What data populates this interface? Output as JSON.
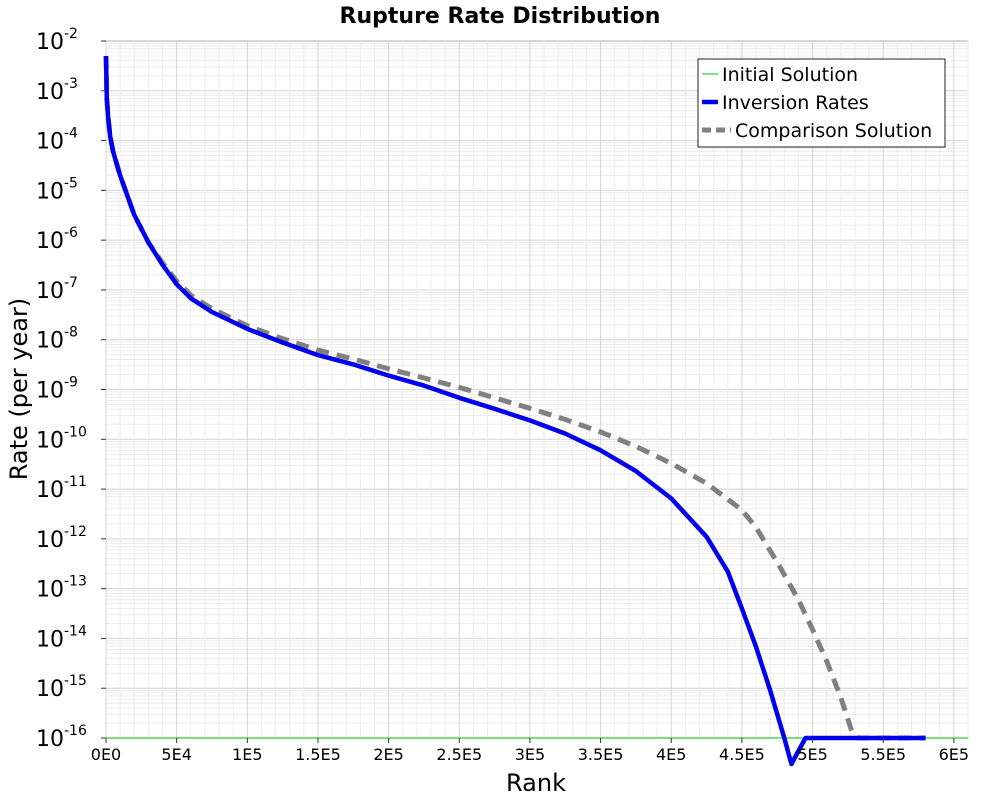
{
  "chart_data": {
    "type": "line",
    "title": "Rupture Rate Distribution",
    "xlabel": "Rank",
    "ylabel": "Rate (per year)",
    "xlim": [
      0,
      610000
    ],
    "ylim_log10": [
      -16,
      -2
    ],
    "y_scale": "log",
    "grid": true,
    "legend_placement": "top-right",
    "x_ticks": [
      {
        "value": 0,
        "label": "0E0"
      },
      {
        "value": 50000,
        "label": "5E4"
      },
      {
        "value": 100000,
        "label": "1E5"
      },
      {
        "value": 150000,
        "label": "1.5E5"
      },
      {
        "value": 200000,
        "label": "2E5"
      },
      {
        "value": 250000,
        "label": "2.5E5"
      },
      {
        "value": 300000,
        "label": "3E5"
      },
      {
        "value": 350000,
        "label": "3.5E5"
      },
      {
        "value": 400000,
        "label": "4E5"
      },
      {
        "value": 450000,
        "label": "4.5E5"
      },
      {
        "value": 500000,
        "label": "5E5"
      },
      {
        "value": 550000,
        "label": "5.5E5"
      },
      {
        "value": 600000,
        "label": "6E5"
      }
    ],
    "y_ticks": [
      {
        "value": 1e-16,
        "base": "10",
        "exp": "-16"
      },
      {
        "value": 1e-15,
        "base": "10",
        "exp": "-15"
      },
      {
        "value": 1e-14,
        "base": "10",
        "exp": "-14"
      },
      {
        "value": 1e-13,
        "base": "10",
        "exp": "-13"
      },
      {
        "value": 1e-12,
        "base": "10",
        "exp": "-12"
      },
      {
        "value": 1e-11,
        "base": "10",
        "exp": "-11"
      },
      {
        "value": 1e-10,
        "base": "10",
        "exp": "-10"
      },
      {
        "value": 1e-09,
        "base": "10",
        "exp": "-9"
      },
      {
        "value": 1e-08,
        "base": "10",
        "exp": "-8"
      },
      {
        "value": 1e-07,
        "base": "10",
        "exp": "-7"
      },
      {
        "value": 1e-06,
        "base": "10",
        "exp": "-6"
      },
      {
        "value": 1e-05,
        "base": "10",
        "exp": "-5"
      },
      {
        "value": 0.0001,
        "base": "10",
        "exp": "-4"
      },
      {
        "value": 0.001,
        "base": "10",
        "exp": "-3"
      },
      {
        "value": 0.01,
        "base": "10",
        "exp": "-2"
      }
    ],
    "series": [
      {
        "name": "Initial Solution",
        "color": "#33cc33",
        "style": "solid-thin",
        "points": [
          [
            0,
            1e-16
          ],
          [
            610000,
            1e-16
          ]
        ]
      },
      {
        "name": "Inversion Rates",
        "color": "#0000ee",
        "style": "solid-thick",
        "points": [
          [
            0,
            0.005
          ],
          [
            600,
            0.0007
          ],
          [
            1500,
            0.0003
          ],
          [
            3000,
            0.00012
          ],
          [
            5000,
            6e-05
          ],
          [
            10000,
            2e-05
          ],
          [
            20000,
            3.2e-06
          ],
          [
            30000,
            9e-07
          ],
          [
            40000,
            3.2e-07
          ],
          [
            50000,
            1.3e-07
          ],
          [
            60000,
            6.8e-08
          ],
          [
            75000,
            3.6e-08
          ],
          [
            100000,
            1.65e-08
          ],
          [
            125000,
            8.8e-09
          ],
          [
            150000,
            4.9e-09
          ],
          [
            175000,
            3.2e-09
          ],
          [
            200000,
            1.9e-09
          ],
          [
            225000,
            1.2e-09
          ],
          [
            250000,
            6.8e-10
          ],
          [
            275000,
            4.1e-10
          ],
          [
            300000,
            2.4e-10
          ],
          [
            325000,
            1.3e-10
          ],
          [
            350000,
            6e-11
          ],
          [
            375000,
            2.3e-11
          ],
          [
            400000,
            6.5e-12
          ],
          [
            425000,
            1.1e-12
          ],
          [
            440000,
            2.2e-13
          ],
          [
            450000,
            4e-14
          ],
          [
            460000,
            6.8e-15
          ],
          [
            470000,
            9e-16
          ],
          [
            480000,
            1e-16
          ],
          [
            485000,
            3e-17
          ],
          [
            495000,
            1e-16
          ],
          [
            497000,
            1e-16
          ],
          [
            580000,
            1e-16
          ]
        ]
      },
      {
        "name": "Comparison Solution",
        "color": "#808080",
        "style": "dashed-thick",
        "points": [
          [
            0,
            0.005
          ],
          [
            600,
            0.0007
          ],
          [
            1500,
            0.0003
          ],
          [
            3000,
            0.00012
          ],
          [
            5000,
            6e-05
          ],
          [
            10000,
            2e-05
          ],
          [
            20000,
            3.2e-06
          ],
          [
            30000,
            9e-07
          ],
          [
            40000,
            3.5e-07
          ],
          [
            50000,
            1.5e-07
          ],
          [
            60000,
            7.8e-08
          ],
          [
            75000,
            4.2e-08
          ],
          [
            100000,
            1.9e-08
          ],
          [
            125000,
            1.05e-08
          ],
          [
            150000,
            6.2e-09
          ],
          [
            175000,
            4.1e-09
          ],
          [
            200000,
            2.6e-09
          ],
          [
            225000,
            1.7e-09
          ],
          [
            250000,
            1.1e-09
          ],
          [
            275000,
            6.8e-10
          ],
          [
            300000,
            4.2e-10
          ],
          [
            325000,
            2.5e-10
          ],
          [
            350000,
            1.4e-10
          ],
          [
            375000,
            7.2e-11
          ],
          [
            400000,
            3.3e-11
          ],
          [
            425000,
            1.3e-11
          ],
          [
            450000,
            3.8e-12
          ],
          [
            460000,
            1.7e-12
          ],
          [
            475000,
            3.4e-13
          ],
          [
            490000,
            6e-14
          ],
          [
            500000,
            1.5e-14
          ],
          [
            510000,
            3.5e-15
          ],
          [
            520000,
            6.5e-16
          ],
          [
            528000,
            1.3e-16
          ],
          [
            532000,
            1e-16
          ],
          [
            580000,
            1e-16
          ]
        ]
      }
    ]
  }
}
